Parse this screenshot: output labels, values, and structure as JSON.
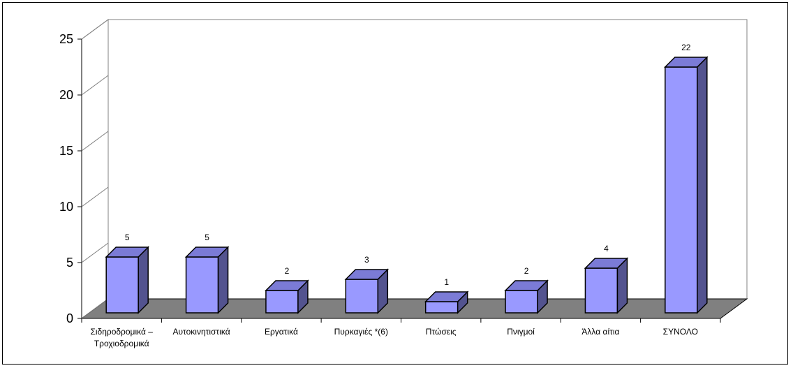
{
  "chart_data": {
    "type": "bar",
    "categories": [
      [
        "Σιδηροδρομικά –",
        "Τροχιοδρομικά"
      ],
      [
        "Αυτοκινητιστικά"
      ],
      [
        "Εργατικά"
      ],
      [
        "Πυρκαγιές *(6)"
      ],
      [
        "Πτώσεις"
      ],
      [
        "Πνιγμοί"
      ],
      [
        "Άλλα αίτια"
      ],
      [
        "ΣΥΝΟΛΟ"
      ]
    ],
    "values": [
      5,
      5,
      2,
      3,
      1,
      2,
      4,
      22
    ],
    "data_labels": [
      "5",
      "5",
      "2",
      "3",
      "1",
      "2",
      "4",
      "22"
    ],
    "yticks": [
      "0",
      "5",
      "10",
      "15",
      "20",
      "25"
    ],
    "ylim": [
      0,
      25
    ],
    "title": "",
    "xlabel": "",
    "ylabel": "",
    "grid": false,
    "legend": "none",
    "colors": {
      "bar_front": "#9999ff",
      "bar_side": "#53538f",
      "bar_top": "#7b7bd6",
      "floor": "#808080",
      "axis": "#000000",
      "wall": "#808080"
    }
  }
}
